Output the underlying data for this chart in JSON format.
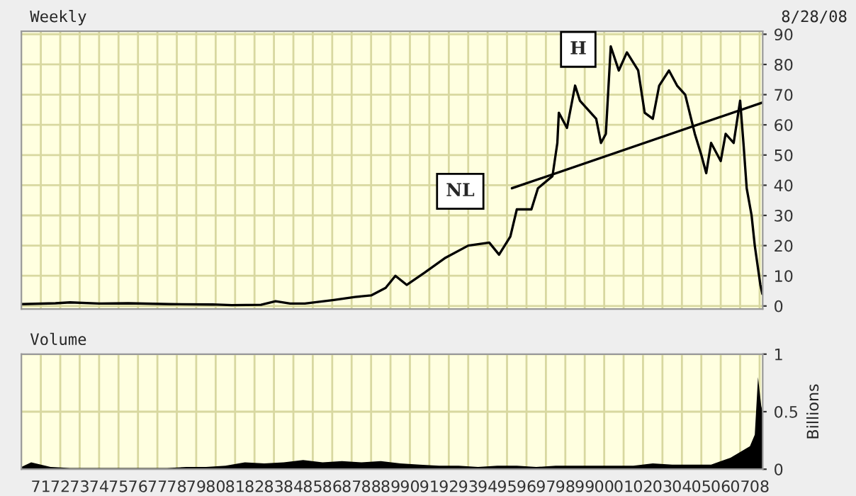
{
  "chart_data": [
    {
      "type": "line",
      "title": "Weekly",
      "annotations": [
        "8/28/08",
        {
          "text": "H",
          "x": "1999-03",
          "y": 85
        },
        {
          "text": "NL",
          "x": "1993-02",
          "y": 38
        }
      ],
      "series": [
        {
          "type": "line",
          "color": "#000000",
          "x": [
            "1970-07",
            "1972-04",
            "1973-01",
            "1974-07",
            "1976-01",
            "1978-03",
            "1980-05",
            "1981-05",
            "1982-11",
            "1983-08",
            "1984-05",
            "1985-02",
            "1986-08",
            "1987-09",
            "1988-07",
            "1989-04",
            "1989-10",
            "1990-05",
            "1991-04",
            "1992-05",
            "1993-07",
            "1994-08",
            "1995-02",
            "1995-09",
            "1996-01",
            "1996-10",
            "1997-02",
            "1997-11",
            "1998-02",
            "1998-03",
            "1998-08",
            "1999-01",
            "1999-04",
            "2000-02",
            "2000-05",
            "2000-08",
            "2000-11",
            "2001-04",
            "2001-09",
            "2002-04",
            "2002-08",
            "2003-01",
            "2003-05",
            "2003-11",
            "2004-04",
            "2004-09",
            "2005-03",
            "2005-07",
            "2005-10",
            "2006-01",
            "2006-07",
            "2006-10",
            "2007-03",
            "2007-07",
            "2007-09",
            "2007-11",
            "2008-02",
            "2008-04",
            "2008-07-15",
            "2008-08-22"
          ],
          "values": [
            0.6,
            0.9,
            1.2,
            0.8,
            0.9,
            0.6,
            0.5,
            0.3,
            0.4,
            1.6,
            0.8,
            0.8,
            2,
            3,
            3.5,
            6,
            10,
            7,
            11,
            16,
            20,
            21,
            17,
            23,
            32,
            32,
            39,
            43,
            54,
            64,
            59,
            73,
            68,
            62,
            54,
            57,
            86,
            78,
            84,
            78,
            64,
            62,
            73,
            78,
            73,
            70,
            57,
            50,
            44,
            54,
            48,
            57,
            54,
            68,
            54,
            39,
            30,
            20,
            7,
            4
          ]
        },
        {
          "type": "line",
          "color": "#000000",
          "x": [
            "1995-10",
            "2008-08-28"
          ],
          "values": [
            39,
            67.4
          ]
        }
      ],
      "xlim": [
        "1970-07-01",
        "2008-08-28"
      ],
      "ylim": [
        -1,
        91
      ],
      "yticks": [
        0,
        10,
        20,
        30,
        40,
        50,
        60,
        70,
        80,
        90
      ],
      "tick_labels": "y",
      "grid": true
    },
    {
      "type": "area",
      "title": "Volume",
      "ylabel": "Billions",
      "series": [
        {
          "color": "#000000",
          "x": [
            "1970-07",
            "1971",
            "1972",
            "1973",
            "1974",
            "1975",
            "1976",
            "1977",
            "1978",
            "1979",
            "1980",
            "1981",
            "1982",
            "1983",
            "1984",
            "1985",
            "1986",
            "1987",
            "1988",
            "1989",
            "1990",
            "1991",
            "1992",
            "1993",
            "1994",
            "1995",
            "1996",
            "1997",
            "1998",
            "1999",
            "2000",
            "2001",
            "2002",
            "2003",
            "2004",
            "2005",
            "2006",
            "2007",
            "2008-01",
            "2008-04",
            "2008-06",
            "2008-08",
            "2008-08-28"
          ],
          "values": [
            0.02,
            0.06,
            0.02,
            0.01,
            0.01,
            0.01,
            0.01,
            0.01,
            0.01,
            0.02,
            0.02,
            0.03,
            0.06,
            0.05,
            0.06,
            0.08,
            0.06,
            0.07,
            0.06,
            0.07,
            0.05,
            0.04,
            0.03,
            0.03,
            0.02,
            0.03,
            0.03,
            0.02,
            0.03,
            0.03,
            0.03,
            0.03,
            0.03,
            0.05,
            0.04,
            0.04,
            0.04,
            0.1,
            0.2,
            0.3,
            0.8,
            0.55,
            0.5
          ]
        }
      ],
      "xlim": [
        "1970-07-01",
        "2008-08-28"
      ],
      "ylim": [
        0,
        1
      ],
      "yticks": [
        0,
        0.5,
        1
      ],
      "grid": true,
      "xticks": [
        {
          "value": "1971-07",
          "label": "71"
        },
        {
          "value": "1972-07",
          "label": "72"
        },
        {
          "value": "1973-07",
          "label": "73"
        },
        {
          "value": "1974-07",
          "label": "74"
        },
        {
          "value": "1975-07",
          "label": "75"
        },
        {
          "value": "1976-07",
          "label": "76"
        },
        {
          "value": "1977-07",
          "label": "77"
        },
        {
          "value": "1978-07",
          "label": "78"
        },
        {
          "value": "1979-07",
          "label": "79"
        },
        {
          "value": "1980-07",
          "label": "80"
        },
        {
          "value": "1981-07",
          "label": "81"
        },
        {
          "value": "1982-07",
          "label": "82"
        },
        {
          "value": "1983-07",
          "label": "83"
        },
        {
          "value": "1984-07",
          "label": "84"
        },
        {
          "value": "1985-07",
          "label": "85"
        },
        {
          "value": "1986-07",
          "label": "86"
        },
        {
          "value": "1987-07",
          "label": "87"
        },
        {
          "value": "1988-07",
          "label": "88"
        },
        {
          "value": "1989-07",
          "label": "89"
        },
        {
          "value": "1990-07",
          "label": "90"
        },
        {
          "value": "1991-07",
          "label": "91"
        },
        {
          "value": "1992-07",
          "label": "92"
        },
        {
          "value": "1993-07",
          "label": "93"
        },
        {
          "value": "1994-07",
          "label": "94"
        },
        {
          "value": "1995-07",
          "label": "95"
        },
        {
          "value": "1996-07",
          "label": "96"
        },
        {
          "value": "1997-07",
          "label": "97"
        },
        {
          "value": "1998-07",
          "label": "98"
        },
        {
          "value": "1999-07",
          "label": "99"
        },
        {
          "value": "2000-07",
          "label": "00"
        },
        {
          "value": "2001-07",
          "label": "01"
        },
        {
          "value": "2002-07",
          "label": "02"
        },
        {
          "value": "2003-07",
          "label": "03"
        },
        {
          "value": "2004-07",
          "label": "04"
        },
        {
          "value": "2005-07",
          "label": "05"
        },
        {
          "value": "2006-07",
          "label": "06"
        },
        {
          "value": "2007-07",
          "label": "07"
        },
        {
          "value": "2008-07",
          "label": "08"
        }
      ]
    }
  ]
}
